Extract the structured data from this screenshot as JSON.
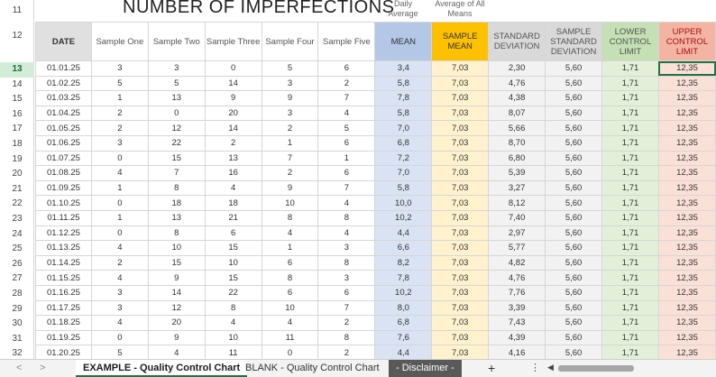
{
  "sheet": {
    "title": "NUMBER OF IMPERFECTIONS",
    "daily_average_label": "Daily Average",
    "average_of_means_label": "Average of All Means",
    "row_numbers": [
      "11",
      "12",
      "13",
      "14",
      "15",
      "16",
      "17",
      "18",
      "19",
      "20",
      "21",
      "22",
      "23",
      "24",
      "25",
      "26",
      "27",
      "28",
      "29",
      "30",
      "31",
      "32"
    ],
    "selected_row": "13",
    "headers": {
      "date": "DATE",
      "s1": "Sample One",
      "s2": "Sample Two",
      "s3": "Sample Three",
      "s4": "Sample Four",
      "s5": "Sample Five",
      "mean": "MEAN",
      "smean": "SAMPLE MEAN",
      "std": "STANDARD DEVIATION",
      "sstd": "SAMPLE STANDARD DEVIATION",
      "lcl": "LOWER CONTROL LIMIT",
      "ucl": "UPPER CONTROL LIMIT"
    },
    "rows": [
      [
        "01.01.25",
        "3",
        "3",
        "0",
        "5",
        "6",
        "3,4",
        "7,03",
        "2,30",
        "5,60",
        "1,71",
        "12,35"
      ],
      [
        "01.02.25",
        "5",
        "5",
        "14",
        "3",
        "2",
        "5,8",
        "7,03",
        "4,76",
        "5,60",
        "1,71",
        "12,35"
      ],
      [
        "01.03.25",
        "1",
        "13",
        "9",
        "9",
        "7",
        "7,8",
        "7,03",
        "4,38",
        "5,60",
        "1,71",
        "12,35"
      ],
      [
        "01.04.25",
        "2",
        "0",
        "20",
        "3",
        "4",
        "5,8",
        "7,03",
        "8,07",
        "5,60",
        "1,71",
        "12,35"
      ],
      [
        "01.05.25",
        "2",
        "12",
        "14",
        "2",
        "5",
        "7,0",
        "7,03",
        "5,66",
        "5,60",
        "1,71",
        "12,35"
      ],
      [
        "01.06.25",
        "3",
        "22",
        "2",
        "1",
        "6",
        "6,8",
        "7,03",
        "8,70",
        "5,60",
        "1,71",
        "12,35"
      ],
      [
        "01.07.25",
        "0",
        "15",
        "13",
        "7",
        "1",
        "7,2",
        "7,03",
        "6,80",
        "5,60",
        "1,71",
        "12,35"
      ],
      [
        "01.08.25",
        "4",
        "7",
        "16",
        "2",
        "6",
        "7,0",
        "7,03",
        "5,39",
        "5,60",
        "1,71",
        "12,35"
      ],
      [
        "01.09.25",
        "1",
        "8",
        "4",
        "9",
        "7",
        "5,8",
        "7,03",
        "3,27",
        "5,60",
        "1,71",
        "12,35"
      ],
      [
        "01.10.25",
        "0",
        "18",
        "18",
        "10",
        "4",
        "10,0",
        "7,03",
        "8,12",
        "5,60",
        "1,71",
        "12,35"
      ],
      [
        "01.11.25",
        "1",
        "13",
        "21",
        "8",
        "8",
        "10,2",
        "7,03",
        "7,40",
        "5,60",
        "1,71",
        "12,35"
      ],
      [
        "01.12.25",
        "0",
        "8",
        "6",
        "4",
        "4",
        "4,4",
        "7,03",
        "2,97",
        "5,60",
        "1,71",
        "12,35"
      ],
      [
        "01.13.25",
        "4",
        "10",
        "15",
        "1",
        "3",
        "6,6",
        "7,03",
        "5,77",
        "5,60",
        "1,71",
        "12,35"
      ],
      [
        "01.14.25",
        "2",
        "15",
        "10",
        "6",
        "8",
        "8,2",
        "7,03",
        "4,82",
        "5,60",
        "1,71",
        "12,35"
      ],
      [
        "01.15.25",
        "4",
        "9",
        "15",
        "8",
        "3",
        "7,8",
        "7,03",
        "4,76",
        "5,60",
        "1,71",
        "12,35"
      ],
      [
        "01.16.25",
        "3",
        "14",
        "22",
        "6",
        "6",
        "10,2",
        "7,03",
        "7,76",
        "5,60",
        "1,71",
        "12,35"
      ],
      [
        "01.17.25",
        "3",
        "12",
        "8",
        "10",
        "7",
        "8,0",
        "7,03",
        "3,39",
        "5,60",
        "1,71",
        "12,35"
      ],
      [
        "01.18.25",
        "4",
        "20",
        "4",
        "4",
        "2",
        "6,8",
        "7,03",
        "7,43",
        "5,60",
        "1,71",
        "12,35"
      ],
      [
        "01.19.25",
        "0",
        "9",
        "10",
        "11",
        "8",
        "7,6",
        "7,03",
        "4,39",
        "5,60",
        "1,71",
        "12,35"
      ],
      [
        "01.20.25",
        "5",
        "4",
        "11",
        "0",
        "2",
        "4,4",
        "7,03",
        "4,16",
        "5,60",
        "1,71",
        "12,35"
      ]
    ]
  },
  "tabs": {
    "items": [
      "EXAMPLE - Quality Control Chart",
      "BLANK - Quality Control Chart",
      "- Disclaimer -"
    ],
    "active_index": 0,
    "add_label": "+",
    "more_label": "⋮",
    "prev_label": "<",
    "next_label": ">"
  },
  "colors": {
    "mean": "#b4c7e7",
    "sample_mean": "#ffc000",
    "lcl": "#c5e0b4",
    "ucl": "#f4b4a4",
    "selection": "#217346"
  }
}
